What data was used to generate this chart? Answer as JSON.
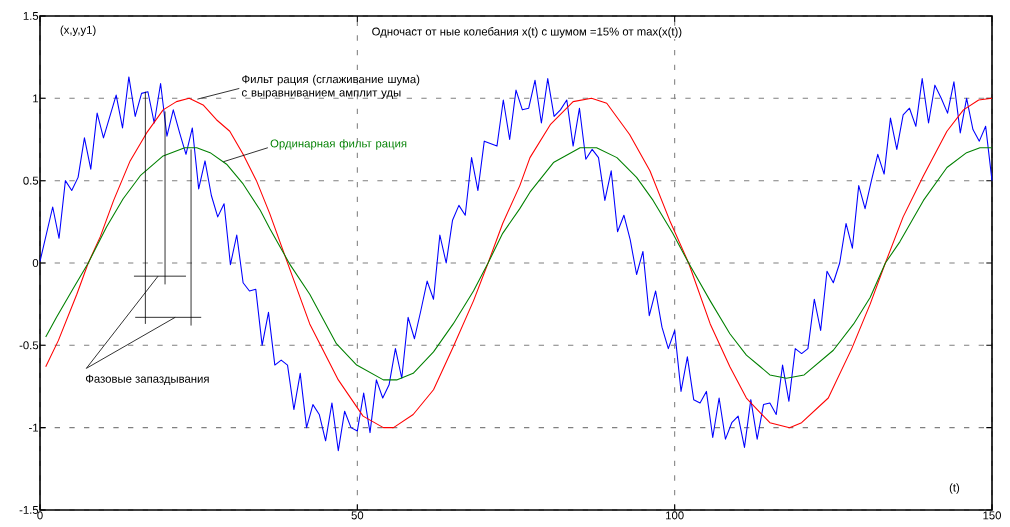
{
  "chart_data": {
    "type": "line",
    "title": "Одночаст от ные колебания x(t) с шумом =15% от  max(x(t))",
    "xlabel": "(t)",
    "ylabel": "(x,y,y1)",
    "annotations": [
      "Фазовые запаздывания"
    ],
    "xlim": [
      0,
      150
    ],
    "ylim": [
      -1.5,
      1.5
    ],
    "xticks": [
      0,
      50,
      100,
      150
    ],
    "yticks": [
      -1.5,
      -1,
      -0.5,
      0,
      0.5,
      1,
      1.5
    ],
    "grid": true,
    "legend": false,
    "marker": "none",
    "line_style": "solid",
    "series": [
      {
        "color": "#0000ff",
        "x": [
          0,
          2,
          3,
          4,
          5,
          6,
          7,
          8,
          9,
          10,
          12,
          13,
          14,
          15,
          16,
          17,
          18,
          19,
          20,
          21,
          22,
          23,
          24,
          25,
          26,
          27,
          28,
          29,
          30,
          31,
          32,
          33,
          34,
          35,
          36,
          37,
          38,
          39,
          40,
          41,
          42,
          43,
          44,
          45,
          46,
          47,
          48,
          49,
          50,
          51,
          52,
          53,
          54,
          55,
          56,
          57,
          58,
          59,
          60,
          61,
          62,
          63,
          64,
          65,
          66,
          67,
          68,
          69,
          70,
          72,
          73,
          74,
          75,
          76,
          77,
          78,
          79,
          80,
          81,
          82,
          83,
          84,
          85,
          86,
          87,
          88,
          89,
          90,
          91,
          92,
          93,
          94,
          95,
          96,
          97,
          98,
          99,
          100,
          101,
          102,
          103,
          104,
          105,
          106,
          107,
          108,
          109,
          110,
          111,
          112,
          113,
          114,
          115,
          116,
          117,
          118,
          119,
          120,
          121,
          122,
          123,
          124,
          125,
          126,
          127,
          128,
          129,
          130,
          131,
          132,
          133,
          134,
          135,
          136,
          137,
          138,
          139,
          140,
          141,
          142,
          143,
          144,
          145,
          146,
          147,
          148,
          149,
          150
        ],
        "values": [
          0.01,
          0.34,
          0.15,
          0.5,
          0.44,
          0.52,
          0.76,
          0.57,
          0.91,
          0.76,
          1.02,
          0.82,
          1.13,
          0.89,
          1.03,
          1.04,
          0.85,
          1.09,
          0.77,
          0.93,
          0.79,
          0.66,
          0.82,
          0.45,
          0.62,
          0.41,
          0.28,
          0.36,
          -0.01,
          0.17,
          -0.12,
          -0.17,
          -0.16,
          -0.5,
          -0.3,
          -0.62,
          -0.59,
          -0.62,
          -0.89,
          -0.67,
          -1.0,
          -0.86,
          -0.92,
          -1.08,
          -0.85,
          -1.14,
          -0.9,
          -1.0,
          -1.02,
          -0.79,
          -1.03,
          -0.71,
          -0.82,
          -0.74,
          -0.52,
          -0.7,
          -0.33,
          -0.46,
          -0.29,
          -0.11,
          -0.22,
          0.17,
          0.0,
          0.26,
          0.35,
          0.29,
          0.64,
          0.44,
          0.74,
          0.71,
          0.99,
          0.75,
          1.05,
          0.93,
          0.94,
          1.11,
          0.85,
          1.12,
          0.89,
          0.93,
          0.99,
          0.71,
          0.94,
          0.63,
          0.69,
          0.64,
          0.38,
          0.56,
          0.19,
          0.29,
          0.14,
          -0.07,
          0.07,
          -0.32,
          -0.17,
          -0.39,
          -0.52,
          -0.41,
          -0.78,
          -0.57,
          -0.83,
          -0.85,
          -0.78,
          -1.06,
          -0.82,
          -1.07,
          -0.97,
          -0.93,
          -1.12,
          -0.83,
          -1.07,
          -0.86,
          -0.85,
          -0.92,
          -0.62,
          -0.84,
          -0.52,
          -0.55,
          -0.52,
          -0.22,
          -0.41,
          -0.05,
          -0.12,
          0.0,
          0.24,
          0.09,
          0.47,
          0.33,
          0.5,
          0.66,
          0.54,
          0.88,
          0.69,
          0.9,
          0.94,
          0.83,
          1.12,
          0.85,
          1.08,
          1.0,
          0.91,
          1.1,
          0.79,
          1.0,
          0.81,
          0.74,
          0.83,
          0.5
        ]
      },
      {
        "name": "Фильт рация  (сглаживание шума) с выравниванием амплит уды",
        "color": "#ff0000",
        "x": [
          0.9,
          2.9,
          5.8,
          7.6,
          9.5,
          11.6,
          14.2,
          16.8,
          19.4,
          21.5,
          23.5,
          25.7,
          27.8,
          29.9,
          32,
          34.1,
          36.2,
          39.1,
          42.5,
          47,
          50.9,
          54.1,
          55.7,
          58.8,
          62,
          65.1,
          68.3,
          70.6,
          72.9,
          75.6,
          77.2,
          80.4,
          84,
          86.9,
          89.3,
          92.9,
          96.1,
          99.2,
          102.2,
          105.6,
          108.7,
          111.3,
          113.5,
          115,
          118.1,
          120,
          124.2,
          127.9,
          130.8,
          133.2,
          136,
          139.2,
          142.9,
          145.5,
          147.9,
          150
        ],
        "values": [
          -0.63,
          -0.47,
          -0.19,
          0,
          0.16,
          0.38,
          0.62,
          0.79,
          0.93,
          0.98,
          1.0,
          0.96,
          0.87,
          0.8,
          0.66,
          0.5,
          0.3,
          -0.01,
          -0.37,
          -0.71,
          -0.93,
          -1.0,
          -1.0,
          -0.92,
          -0.77,
          -0.51,
          -0.23,
          0,
          0.24,
          0.47,
          0.64,
          0.84,
          0.98,
          1.0,
          0.97,
          0.78,
          0.56,
          0.26,
          0,
          -0.37,
          -0.63,
          -0.82,
          -0.91,
          -0.97,
          -1.0,
          -0.97,
          -0.82,
          -0.52,
          -0.25,
          0,
          0.28,
          0.53,
          0.8,
          0.93,
          0.99,
          1.0
        ]
      },
      {
        "name": "Ординарная фильт рация",
        "color": "#008000",
        "x": [
          0.9,
          2.6,
          5.3,
          7.6,
          10.5,
          13.1,
          15.8,
          19.4,
          22.8,
          24.7,
          26.8,
          29.4,
          32,
          34.7,
          36.2,
          39.4,
          42.5,
          46.7,
          49.9,
          54.1,
          56.2,
          58.8,
          62,
          65.1,
          68.3,
          70.6,
          72.9,
          75.6,
          77.2,
          80.9,
          85.1,
          87.7,
          90.9,
          94,
          96.6,
          99.7,
          102.2,
          105.6,
          108.7,
          111.3,
          113.5,
          115,
          117.6,
          120.4,
          125,
          128.2,
          130.8,
          133.2,
          135.5,
          139.2,
          142.9,
          146,
          148.1,
          150
        ],
        "values": [
          -0.45,
          -0.33,
          -0.15,
          0,
          0.22,
          0.39,
          0.53,
          0.65,
          0.7,
          0.7,
          0.67,
          0.6,
          0.48,
          0.32,
          0.21,
          -0.01,
          -0.19,
          -0.49,
          -0.62,
          -0.71,
          -0.71,
          -0.67,
          -0.54,
          -0.37,
          -0.17,
          0,
          0.18,
          0.33,
          0.43,
          0.61,
          0.7,
          0.7,
          0.64,
          0.52,
          0.38,
          0.18,
          0,
          -0.23,
          -0.43,
          -0.56,
          -0.63,
          -0.68,
          -0.7,
          -0.68,
          -0.53,
          -0.37,
          -0.21,
          0,
          0.13,
          0.38,
          0.58,
          0.67,
          0.7,
          0.7
        ]
      }
    ]
  }
}
